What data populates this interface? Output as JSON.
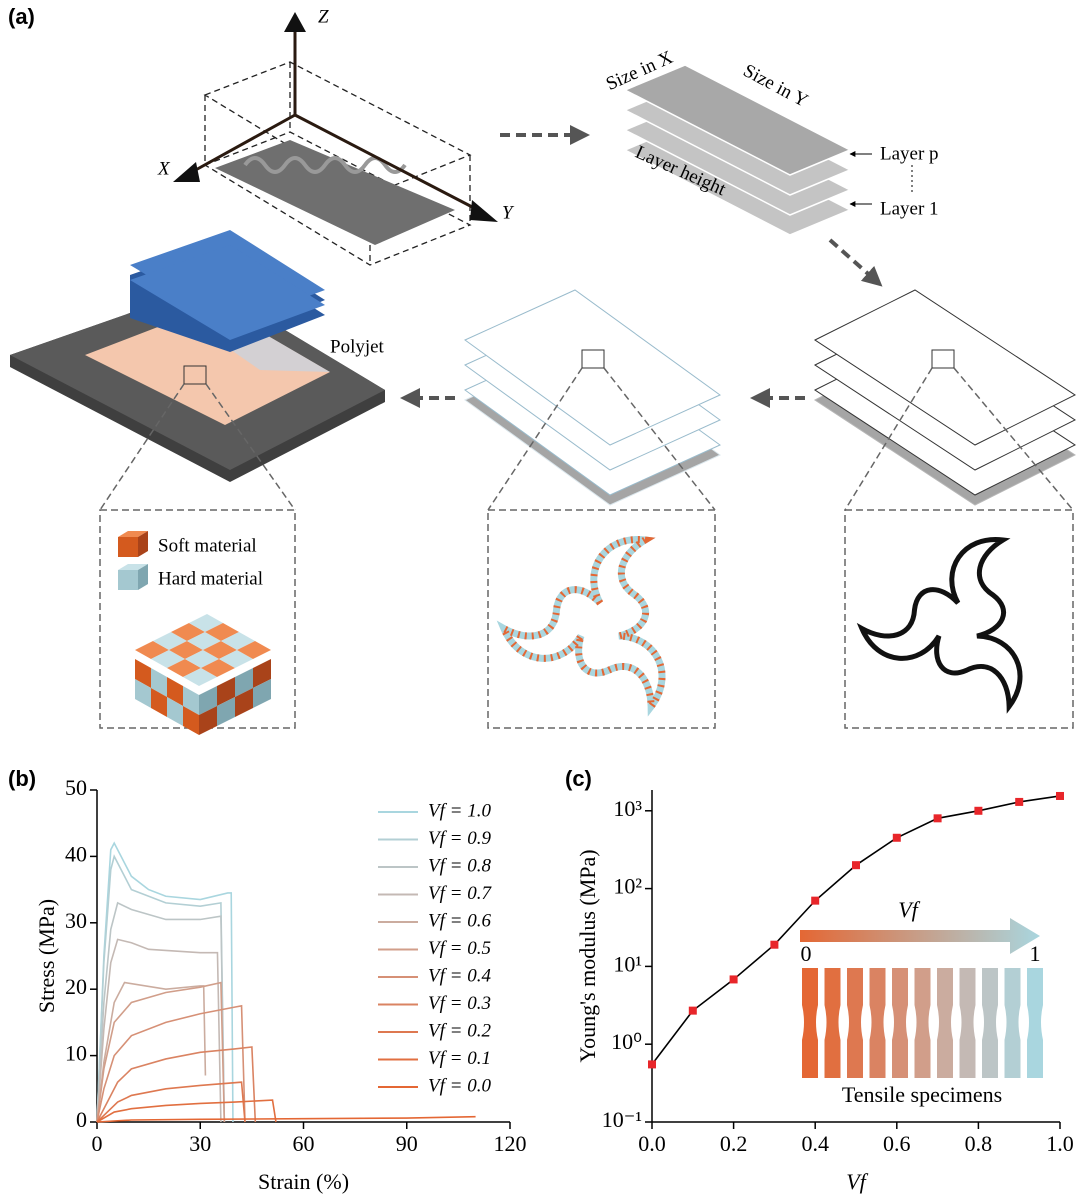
{
  "panel_labels": [
    "(a)",
    "(b)",
    "(c)"
  ],
  "diagram": {
    "axis_z": "Z",
    "axis_x": "X",
    "axis_y": "Y",
    "size_x": "Size in X",
    "size_y": "Size in Y",
    "layer_height": "Layer height",
    "layer_p": "Layer p",
    "layer_1": "Layer 1",
    "polyjet": "Polyjet",
    "soft": "Soft material",
    "hard": "Hard material"
  },
  "chart_data": [
    {
      "type": "line",
      "xlabel": "Strain (%)",
      "ylabel": "Stress (MPa)",
      "xlim": [
        0,
        120
      ],
      "xticks": [
        0,
        30,
        60,
        90,
        120
      ],
      "ylim": [
        0,
        50
      ],
      "yticks": [
        0,
        10,
        20,
        30,
        40,
        50
      ],
      "legend": "upper right",
      "series": [
        {
          "name": "Vf = 1.0",
          "color": "#a9d6df",
          "x": [
            0,
            2,
            4,
            5,
            7,
            10,
            15,
            20,
            30,
            38,
            39,
            39.5
          ],
          "values": [
            0,
            25,
            41,
            42,
            40,
            37,
            35,
            34,
            33.5,
            34.5,
            34.5,
            0
          ]
        },
        {
          "name": "Vf = 0.9",
          "color": "#b3cfd4",
          "x": [
            0,
            2,
            4,
            5,
            7,
            10,
            20,
            30,
            36,
            37
          ],
          "values": [
            0,
            24,
            38,
            40,
            38,
            35,
            33,
            32.5,
            33,
            0
          ]
        },
        {
          "name": "Vf = 0.8",
          "color": "#bcc5c6",
          "x": [
            0,
            2,
            4,
            6,
            10,
            20,
            30,
            36,
            37
          ],
          "values": [
            0,
            18,
            29,
            33,
            32,
            30.5,
            30.5,
            31,
            0
          ]
        },
        {
          "name": "Vf = 0.7",
          "color": "#c4b9b4",
          "x": [
            0,
            2,
            4,
            6,
            10,
            15,
            30,
            35,
            36
          ],
          "values": [
            0,
            14,
            24,
            27.5,
            27,
            26,
            25.5,
            25.5,
            0
          ]
        },
        {
          "name": "Vf = 0.6",
          "color": "#cbac9f",
          "x": [
            0,
            2,
            5,
            8,
            20,
            30,
            31,
            31.5
          ],
          "values": [
            0,
            9,
            18,
            21,
            20,
            20.5,
            20.5,
            7
          ]
        },
        {
          "name": "Vf = 0.5",
          "color": "#d19e8a",
          "x": [
            0,
            2,
            5,
            10,
            20,
            30,
            36,
            37
          ],
          "values": [
            0,
            8,
            15,
            18,
            19.5,
            20.3,
            21,
            0
          ]
        },
        {
          "name": "Vf = 0.4",
          "color": "#d69076",
          "x": [
            0,
            2,
            5,
            10,
            20,
            30,
            40,
            42,
            43
          ],
          "values": [
            0,
            5,
            10,
            13,
            15,
            16.3,
            17.3,
            17.5,
            0
          ]
        },
        {
          "name": "Vf = 0.3",
          "color": "#da8362",
          "x": [
            0,
            3,
            6,
            10,
            20,
            30,
            40,
            45,
            46
          ],
          "values": [
            0,
            3,
            6,
            8,
            9.5,
            10.5,
            11,
            11.3,
            0
          ]
        },
        {
          "name": "Vf = 0.2",
          "color": "#de7850",
          "x": [
            0,
            3,
            6,
            10,
            20,
            30,
            42,
            43
          ],
          "values": [
            0,
            1.5,
            3,
            4,
            5,
            5.5,
            6,
            0
          ]
        },
        {
          "name": "Vf = 0.1",
          "color": "#e16f40",
          "x": [
            0,
            5,
            10,
            20,
            30,
            40,
            51,
            52
          ],
          "values": [
            0,
            1.5,
            2,
            2.5,
            2.8,
            3,
            3.3,
            0
          ]
        },
        {
          "name": "Vf = 0.0",
          "color": "#e46734",
          "x": [
            0,
            10,
            30,
            60,
            90,
            110
          ],
          "values": [
            0,
            0.3,
            0.4,
            0.5,
            0.6,
            0.8
          ]
        }
      ]
    },
    {
      "type": "line",
      "xlabel": "Vf",
      "ylabel": "Young's modulus (MPa)",
      "log_y": true,
      "markers": true,
      "line_color": "#000000",
      "marker_color": "#e8262a",
      "xlim": [
        0,
        1
      ],
      "xticks": [
        {
          "value": 0,
          "label": "0.0"
        },
        0.2,
        0.4,
        0.6,
        0.8,
        {
          "value": 1,
          "label": "1.0"
        }
      ],
      "ylim": [
        0.1,
        1850
      ],
      "yticks": [
        {
          "value": 0.1,
          "label": "10⁻¹"
        },
        {
          "value": 1,
          "label": "10⁰"
        },
        {
          "value": 10,
          "label": "10¹"
        },
        {
          "value": 100,
          "label": "10²"
        },
        {
          "value": 1000,
          "label": "10³"
        }
      ],
      "x": [
        0,
        0.1,
        0.2,
        0.3,
        0.4,
        0.5,
        0.6,
        0.7,
        0.8,
        0.9,
        1.0
      ],
      "values": [
        0.55,
        2.7,
        6.8,
        19,
        70,
        200,
        450,
        800,
        1000,
        1300,
        1550
      ],
      "inset": {
        "arrow_label": "Vf",
        "start": "0",
        "end": "1",
        "caption": "Tensile specimens"
      }
    }
  ]
}
